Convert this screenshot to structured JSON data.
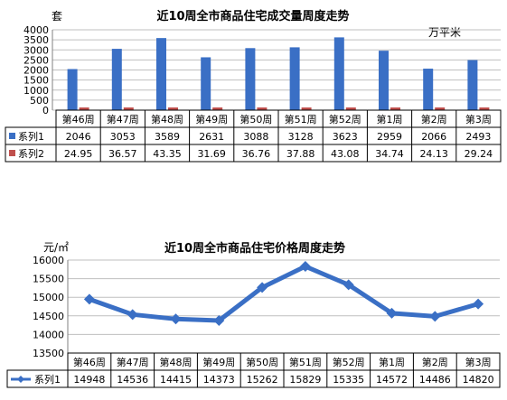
{
  "chart_data": [
    {
      "type": "bar",
      "title": "近10周全市商品住宅成交量周度走势",
      "left_unit": "套",
      "right_unit": "万平米",
      "categories": [
        "第46周",
        "第47周",
        "第48周",
        "第49周",
        "第50周",
        "第51周",
        "第52周",
        "第1周",
        "第2周",
        "第3周"
      ],
      "y_ticks": [
        "4000",
        "3500",
        "3000",
        "2500",
        "2000",
        "1500",
        "1000",
        "500",
        "0"
      ],
      "ylim": [
        0,
        4000
      ],
      "legend_placement": "data-table",
      "series": [
        {
          "name": "系列1",
          "color": "#3a6fc5",
          "values": [
            2046,
            3053,
            3589,
            2631,
            3088,
            3128,
            3623,
            2959,
            2066,
            2493
          ],
          "labels": [
            "2046",
            "3053",
            "3589",
            "2631",
            "3088",
            "3128",
            "3623",
            "2959",
            "2066",
            "2493"
          ]
        },
        {
          "name": "系列2",
          "color": "#c0504d",
          "values": [
            24.95,
            36.57,
            43.35,
            31.69,
            36.76,
            37.88,
            43.08,
            34.74,
            24.13,
            29.24
          ],
          "labels": [
            "24.95",
            "36.57",
            "43.35",
            "31.69",
            "36.76",
            "37.88",
            "43.08",
            "34.74",
            "24.13",
            "29.24"
          ]
        }
      ]
    },
    {
      "type": "line",
      "title": "近10周全市商品住宅价格周度走势",
      "left_unit": "元/㎡",
      "categories": [
        "第46周",
        "第47周",
        "第48周",
        "第49周",
        "第50周",
        "第51周",
        "第52周",
        "第1周",
        "第2周",
        "第3周"
      ],
      "y_ticks": [
        "16000",
        "15500",
        "15000",
        "14500",
        "14000",
        "13500"
      ],
      "ylim": [
        13500,
        16000
      ],
      "legend_placement": "data-table",
      "series": [
        {
          "name": "系列1",
          "color": "#3a6fc5",
          "values": [
            14948,
            14536,
            14415,
            14373,
            15262,
            15829,
            15335,
            14572,
            14486,
            14820
          ],
          "labels": [
            "14948",
            "14536",
            "14415",
            "14373",
            "15262",
            "15829",
            "15335",
            "14572",
            "14486",
            "14820"
          ]
        }
      ]
    }
  ]
}
